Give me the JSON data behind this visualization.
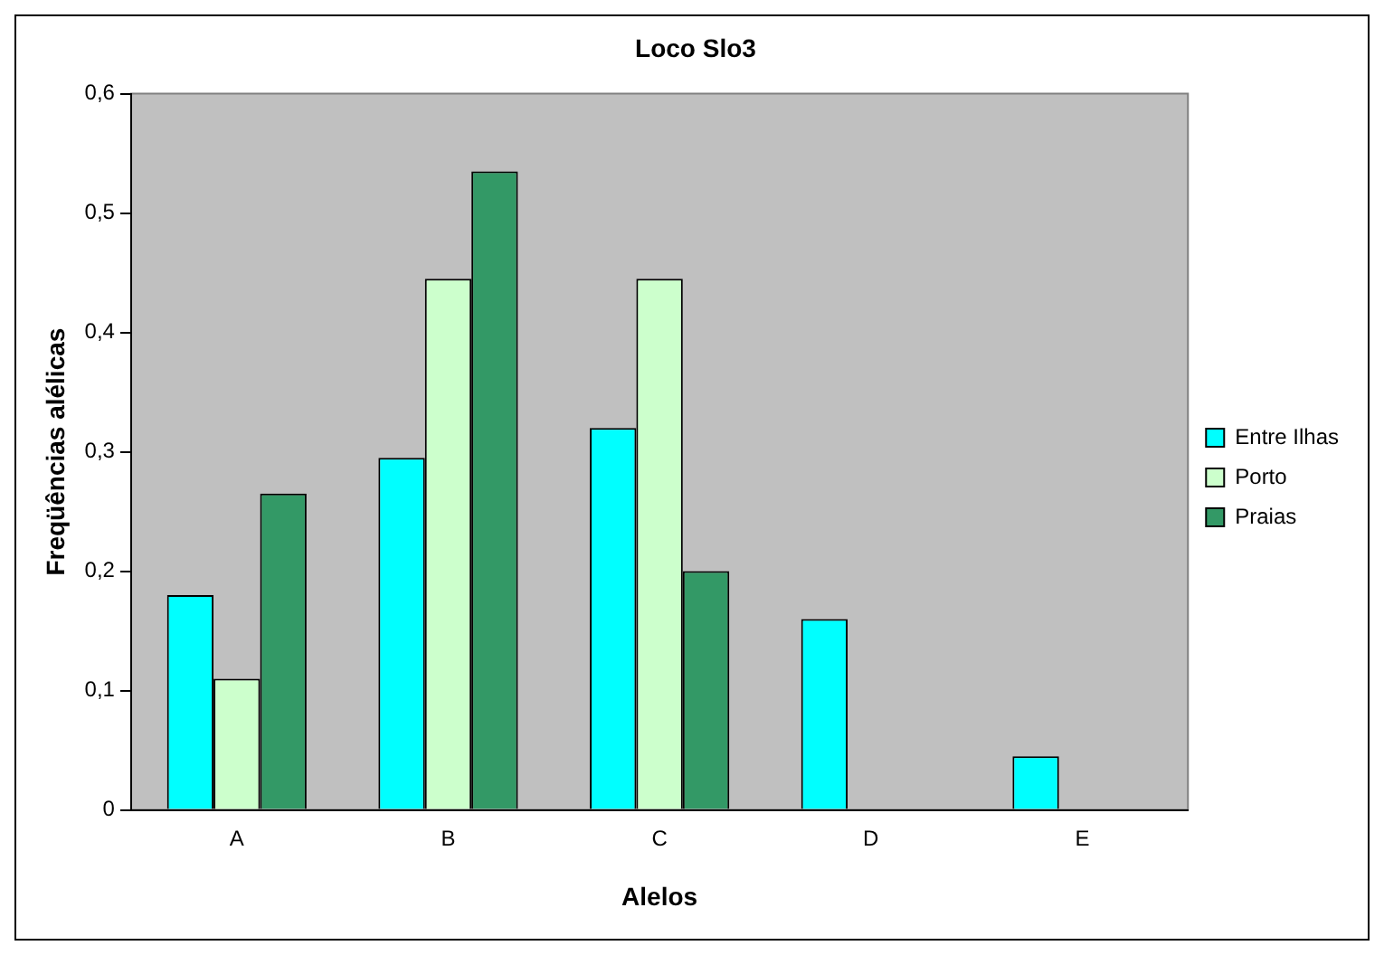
{
  "chart_data": {
    "type": "bar",
    "title": "Loco Slo3",
    "xlabel": "Alelos",
    "ylabel": "Freqüências alélicas",
    "categories": [
      "A",
      "B",
      "C",
      "D",
      "E"
    ],
    "series": [
      {
        "name": "Entre Ilhas",
        "color": "#00ffff",
        "values": [
          0.18,
          0.295,
          0.32,
          0.16,
          0.045
        ]
      },
      {
        "name": "Porto",
        "color": "#ccffcc",
        "values": [
          0.11,
          0.445,
          0.445,
          0,
          0
        ]
      },
      {
        "name": "Praias",
        "color": "#339966",
        "values": [
          0.265,
          0.535,
          0.2,
          0,
          0
        ]
      }
    ],
    "ylim": [
      0,
      0.6
    ],
    "yticks": [
      {
        "value": 0,
        "label": "0"
      },
      {
        "value": 0.1,
        "label": "0,1"
      },
      {
        "value": 0.2,
        "label": "0,2"
      },
      {
        "value": 0.3,
        "label": "0,3"
      },
      {
        "value": 0.4,
        "label": "0,4"
      },
      {
        "value": 0.5,
        "label": "0,5"
      },
      {
        "value": 0.6,
        "label": "0,6"
      }
    ],
    "grid": false,
    "legend": "right"
  }
}
